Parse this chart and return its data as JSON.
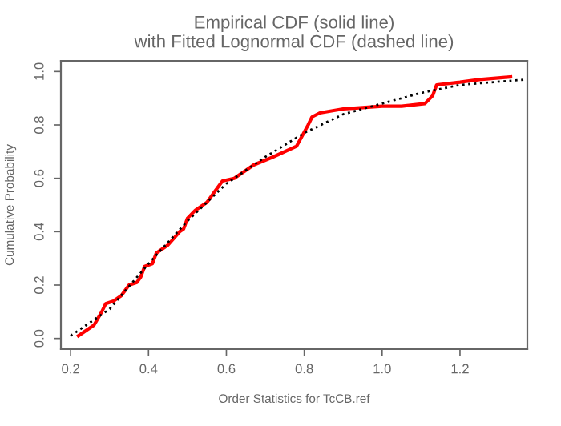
{
  "chart_data": {
    "type": "line",
    "title": "Empirical CDF (solid line)\nwith Fitted Lognormal CDF (dashed line)",
    "xlabel": "Order Statistics for TcCB.ref",
    "ylabel": "Cumulative Probability",
    "xlim": [
      0.175,
      1.373
    ],
    "ylim": [
      -0.04,
      1.04
    ],
    "xticks": [
      0.2,
      0.4,
      0.6,
      0.8,
      {
        "value": 1,
        "label": "1.0"
      },
      1.2
    ],
    "yticks": [
      {
        "value": 0,
        "label": "0.0"
      },
      0.2,
      0.4,
      0.6,
      0.8,
      {
        "value": 1,
        "label": "1.0"
      }
    ],
    "grid": false,
    "legend": false,
    "marker": "none",
    "series": [
      {
        "color": "#ff0000",
        "line_style": "solid",
        "x": [
          0.22,
          0.26,
          0.28,
          0.29,
          0.31,
          0.33,
          0.35,
          0.37,
          0.38,
          0.39,
          0.41,
          0.42,
          0.45,
          0.48,
          0.49,
          0.5,
          0.52,
          0.55,
          0.56,
          0.57,
          0.59,
          0.62,
          0.65,
          0.67,
          0.72,
          0.78,
          0.81,
          0.82,
          0.84,
          0.9,
          0.95,
          1.0,
          1.05,
          1.11,
          1.13,
          1.14,
          1.2,
          1.25,
          1.33
        ],
        "values": [
          0.01,
          0.05,
          0.1,
          0.13,
          0.14,
          0.16,
          0.2,
          0.21,
          0.23,
          0.27,
          0.28,
          0.32,
          0.35,
          0.4,
          0.41,
          0.45,
          0.48,
          0.51,
          0.53,
          0.55,
          0.59,
          0.6,
          0.63,
          0.65,
          0.68,
          0.72,
          0.8,
          0.83,
          0.845,
          0.86,
          0.865,
          0.87,
          0.87,
          0.88,
          0.91,
          0.95,
          0.96,
          0.97,
          0.98
        ]
      },
      {
        "color": "#000000",
        "line_style": "dotted",
        "x": [
          0.2,
          0.3,
          0.4,
          0.5,
          0.6,
          0.7,
          0.8,
          0.9,
          1.0,
          1.1,
          1.2,
          1.37
        ],
        "values": [
          0.01,
          0.11,
          0.28,
          0.44,
          0.58,
          0.68,
          0.77,
          0.84,
          0.88,
          0.92,
          0.95,
          0.97
        ]
      }
    ]
  }
}
